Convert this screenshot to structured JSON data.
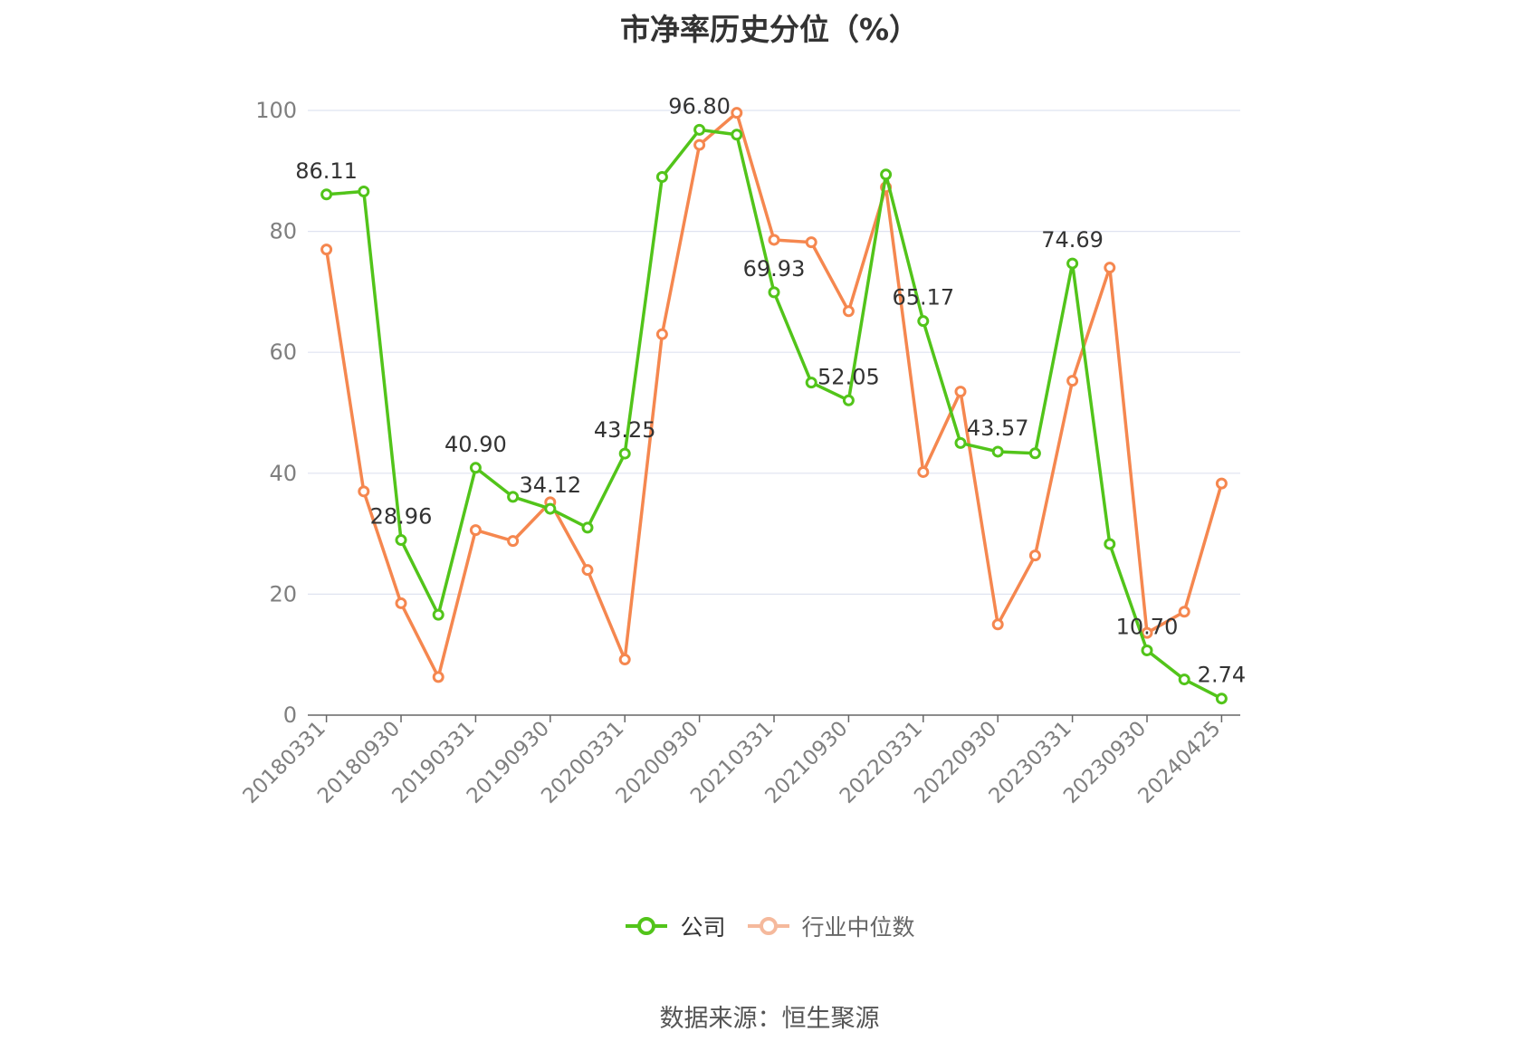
{
  "title": "市净率历史分位（%）",
  "source_label": "数据来源：恒生聚源",
  "colors": {
    "company": "#52c41a",
    "industry": "#f5874f",
    "grid": "#dfe3f0",
    "axis": "#666666",
    "tick_text": "#7f7f7f",
    "label_text": "#333333"
  },
  "chart_data": {
    "type": "line",
    "title": "市净率历史分位（%）",
    "xlabel": "",
    "ylabel": "",
    "ylim": [
      0,
      100
    ],
    "yticks": [
      0,
      20,
      40,
      60,
      80,
      100
    ],
    "grid": true,
    "legend_position": "bottom",
    "x": [
      "20180331",
      "20180630",
      "20180930",
      "20181231",
      "20190331",
      "20190630",
      "20190930",
      "20191231",
      "20200331",
      "20200630",
      "20200930",
      "20201231",
      "20210331",
      "20210630",
      "20210930",
      "20211231",
      "20220331",
      "20220630",
      "20220930",
      "20221231",
      "20230331",
      "20230630",
      "20230930",
      "20231231",
      "20240425"
    ],
    "x_tick_labels": [
      "20180331",
      "20180930",
      "20190331",
      "20190930",
      "20200331",
      "20200930",
      "20210331",
      "20210930",
      "20220331",
      "20220930",
      "20230331",
      "20230930",
      "20240425"
    ],
    "x_tick_indices": [
      0,
      2,
      4,
      6,
      8,
      10,
      12,
      14,
      16,
      18,
      20,
      22,
      24
    ],
    "series": [
      {
        "name": "公司",
        "values": [
          86.11,
          86.6,
          28.96,
          16.6,
          40.9,
          36.1,
          34.12,
          31.0,
          43.25,
          89.0,
          96.8,
          96.0,
          69.93,
          55.0,
          52.05,
          89.4,
          65.17,
          45.0,
          43.57,
          43.3,
          74.69,
          28.3,
          10.7,
          5.9,
          2.74
        ],
        "labels": [
          "86.11",
          "",
          "28.96",
          "",
          "40.90",
          "",
          "34.12",
          "",
          "43.25",
          "",
          "96.80",
          "",
          "69.93",
          "",
          "52.05",
          "",
          "65.17",
          "",
          "43.57",
          "",
          "74.69",
          "",
          "10.70",
          "",
          "2.74"
        ]
      },
      {
        "name": "行业中位数",
        "values": [
          77.0,
          37.0,
          18.5,
          6.3,
          30.6,
          28.8,
          35.2,
          24.0,
          9.2,
          63.0,
          94.3,
          99.6,
          78.6,
          78.2,
          66.8,
          87.3,
          40.2,
          53.5,
          15.0,
          26.4,
          55.3,
          74.0,
          13.6,
          17.1,
          38.3
        ]
      }
    ]
  }
}
